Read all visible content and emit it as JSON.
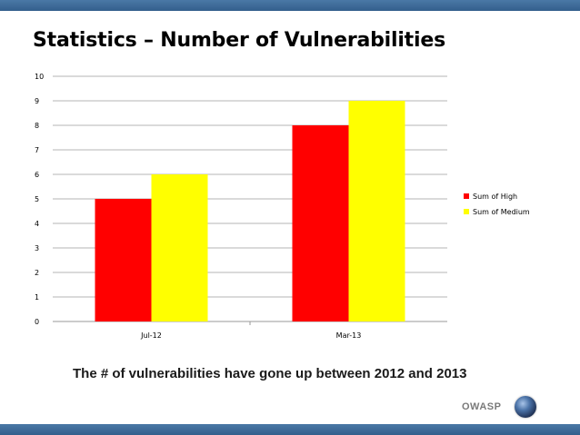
{
  "slide": {
    "title": "Statistics – Number of Vulnerabilities",
    "caption": "The # of vulnerabilities have gone up between 2012 and 2013",
    "brand": "OWASP",
    "logo_icon": "owasp-globe-icon"
  },
  "chart_data": {
    "type": "bar",
    "categories": [
      "Jul-12",
      "Mar-13"
    ],
    "series": [
      {
        "name": "Sum of High",
        "values": [
          5,
          8
        ],
        "color": "#ff0000"
      },
      {
        "name": "Sum of Medium",
        "values": [
          6,
          9
        ],
        "color": "#ffff00"
      }
    ],
    "ylim": [
      0,
      10
    ],
    "yticks": [
      0,
      1,
      2,
      3,
      4,
      5,
      6,
      7,
      8,
      9,
      10
    ],
    "grid": true,
    "legend": "right"
  }
}
